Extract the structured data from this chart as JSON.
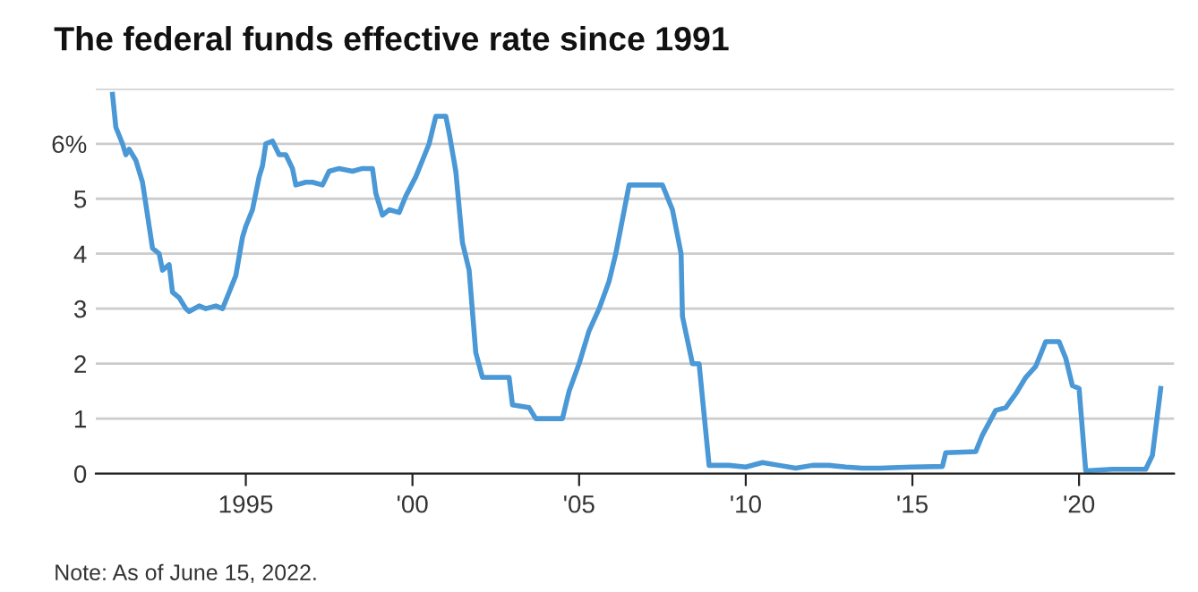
{
  "chart_data": {
    "type": "line",
    "title": "The federal funds effective rate since 1991",
    "x": [
      1991.0,
      1991.1,
      1991.3,
      1991.4,
      1991.5,
      1991.7,
      1991.9,
      1992.0,
      1992.2,
      1992.4,
      1992.5,
      1992.7,
      1992.8,
      1993.0,
      1993.2,
      1993.3,
      1993.6,
      1993.8,
      1994.1,
      1994.3,
      1994.5,
      1994.7,
      1994.9,
      1995.0,
      1995.2,
      1995.4,
      1995.5,
      1995.6,
      1995.8,
      1996.0,
      1996.2,
      1996.4,
      1996.5,
      1996.8,
      1997.0,
      1997.3,
      1997.5,
      1997.8,
      1998.2,
      1998.5,
      1998.8,
      1998.9,
      1999.1,
      1999.3,
      1999.6,
      1999.8,
      2000.1,
      2000.3,
      2000.5,
      2000.7,
      2001.0,
      2001.1,
      2001.3,
      2001.5,
      2001.7,
      2001.9,
      2002.1,
      2002.5,
      2002.9,
      2003.0,
      2003.5,
      2003.7,
      2004.2,
      2004.5,
      2004.7,
      2005.0,
      2005.3,
      2005.6,
      2005.9,
      2006.1,
      2006.5,
      2007.5,
      2007.8,
      2008.06,
      2008.1,
      2008.4,
      2008.6,
      2008.9,
      2009.5,
      2010.0,
      2010.5,
      2011.0,
      2011.5,
      2012.0,
      2012.5,
      2013.0,
      2013.5,
      2014.0,
      2015.0,
      2015.9,
      2016.0,
      2016.9,
      2017.1,
      2017.5,
      2017.8,
      2018.1,
      2018.4,
      2018.7,
      2019.0,
      2019.4,
      2019.6,
      2019.8,
      2020.0,
      2020.2,
      2021.0,
      2022.0,
      2022.2,
      2022.45
    ],
    "series": [
      {
        "color": "#4a98d6",
        "values": [
          6.9,
          6.3,
          6.0,
          5.8,
          5.9,
          5.7,
          5.3,
          4.9,
          4.1,
          4.0,
          3.7,
          3.8,
          3.3,
          3.2,
          3.0,
          2.95,
          3.05,
          3.0,
          3.05,
          3.0,
          3.3,
          3.6,
          4.3,
          4.5,
          4.8,
          5.4,
          5.6,
          6.0,
          6.05,
          5.8,
          5.8,
          5.55,
          5.25,
          5.3,
          5.3,
          5.25,
          5.5,
          5.55,
          5.5,
          5.55,
          5.55,
          5.1,
          4.7,
          4.8,
          4.75,
          5.05,
          5.4,
          5.7,
          6.0,
          6.5,
          6.5,
          6.2,
          5.5,
          4.2,
          3.7,
          2.2,
          1.75,
          1.75,
          1.75,
          1.25,
          1.2,
          1.0,
          1.0,
          1.0,
          1.5,
          2.0,
          2.6,
          3.0,
          3.5,
          4.0,
          5.25,
          5.25,
          4.8,
          4.0,
          2.86,
          2.0,
          2.0,
          0.15,
          0.15,
          0.12,
          0.2,
          0.15,
          0.1,
          0.15,
          0.15,
          0.12,
          0.1,
          0.1,
          0.12,
          0.13,
          0.38,
          0.4,
          0.7,
          1.15,
          1.2,
          1.45,
          1.75,
          1.95,
          2.4,
          2.4,
          2.1,
          1.6,
          1.55,
          0.05,
          0.08,
          0.08,
          0.33,
          1.55
        ]
      }
    ],
    "xlim": [
      1990.5,
      2022.85
    ],
    "ylim": [
      0,
      7
    ],
    "xticks": [
      {
        "value": 1995,
        "label": "1995"
      },
      {
        "value": 2000,
        "label": "'00"
      },
      {
        "value": 2005,
        "label": "'05"
      },
      {
        "value": 2010,
        "label": "'10"
      },
      {
        "value": 2015,
        "label": "'15"
      },
      {
        "value": 2020,
        "label": "'20"
      }
    ],
    "yticks": [
      0,
      1,
      2,
      3,
      4,
      5,
      {
        "value": 6,
        "label": "6%"
      },
      {
        "value": 7,
        "label": null
      }
    ],
    "grid": "y",
    "annotations": [
      "Note: As of June 15, 2022."
    ]
  }
}
